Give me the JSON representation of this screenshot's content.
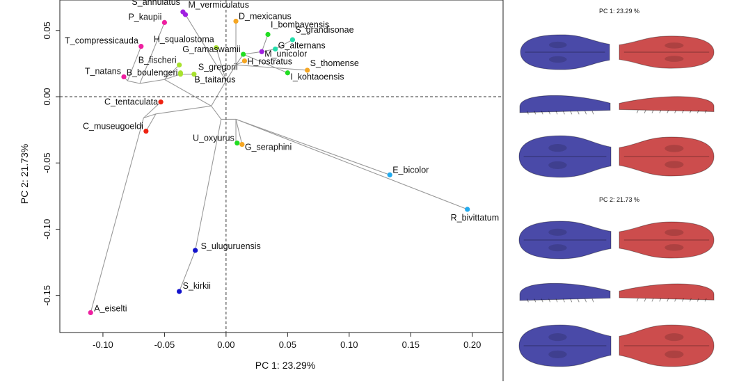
{
  "chart_data": {
    "type": "scatter",
    "xlabel": "PC 1: 23.29%",
    "ylabel": "PC 2: 21.73%",
    "xlim": [
      -0.135,
      0.225
    ],
    "ylim": [
      -0.178,
      0.073
    ],
    "xticks": [
      -0.1,
      -0.05,
      0.0,
      0.05,
      0.1,
      0.15,
      0.2
    ],
    "xtick_labels": [
      "-0.10",
      "-0.05",
      "0.00",
      "0.05",
      "0.10",
      "0.15",
      "0.20"
    ],
    "yticks": [
      0.05,
      0.0,
      -0.05,
      -0.1,
      -0.15
    ],
    "ytick_labels": [
      "0.05",
      "0.00",
      "-0.05",
      "-0.10",
      "-0.15"
    ],
    "zero_lines": true,
    "grid": false,
    "points": [
      {
        "name": "S_annulatus",
        "x": -0.035,
        "y": 0.064,
        "color": "#a020e0"
      },
      {
        "name": "M_vermiculatus",
        "x": -0.033,
        "y": 0.062,
        "color": "#a020e0"
      },
      {
        "name": "P_kaupii",
        "x": -0.05,
        "y": 0.056,
        "color": "#ee1fa0"
      },
      {
        "name": "T_compressicauda",
        "x": -0.069,
        "y": 0.038,
        "color": "#ee1fa0"
      },
      {
        "name": "H_squalostoma",
        "x": -0.008,
        "y": 0.037,
        "color": "#a8e22e"
      },
      {
        "name": "D_mexicanus",
        "x": 0.008,
        "y": 0.057,
        "color": "#f5a623"
      },
      {
        "name": "I_bombayensis",
        "x": 0.034,
        "y": 0.047,
        "color": "#22dd22"
      },
      {
        "name": "S_grandisonae",
        "x": 0.054,
        "y": 0.043,
        "color": "#22ddaa"
      },
      {
        "name": "G_alternans",
        "x": 0.04,
        "y": 0.036,
        "color": "#22ddaa"
      },
      {
        "name": "G_ramaswamii",
        "x": 0.014,
        "y": 0.032,
        "color": "#22dd22"
      },
      {
        "name": "M_unicolor",
        "x": 0.029,
        "y": 0.034,
        "color": "#a020e0"
      },
      {
        "name": "H_rostratus",
        "x": 0.015,
        "y": 0.027,
        "color": "#f5a623"
      },
      {
        "name": "B_fischeri",
        "x": -0.038,
        "y": 0.024,
        "color": "#a8e22e"
      },
      {
        "name": "S_gregorii",
        "x": -0.026,
        "y": 0.017,
        "color": "#a8e22e"
      },
      {
        "name": "B_taitanus",
        "x": -0.037,
        "y": 0.017,
        "color": "#a8e22e"
      },
      {
        "name": "S_thomense",
        "x": 0.066,
        "y": 0.02,
        "color": "#f5a623"
      },
      {
        "name": "I_kohtaoensis",
        "x": 0.05,
        "y": 0.018,
        "color": "#22dd22"
      },
      {
        "name": "T_natans",
        "x": -0.083,
        "y": 0.015,
        "color": "#ee1fa0"
      },
      {
        "name": "B_boulengeri",
        "x": -0.037,
        "y": 0.018,
        "color": "#a8e22e"
      },
      {
        "name": "C_tentaculata",
        "x": -0.053,
        "y": -0.004,
        "color": "#ee2211"
      },
      {
        "name": "C_museugoeldi",
        "x": -0.065,
        "y": -0.026,
        "color": "#ee2211"
      },
      {
        "name": "U_oxyurus",
        "x": 0.009,
        "y": -0.035,
        "color": "#22dd22"
      },
      {
        "name": "G_seraphini",
        "x": 0.013,
        "y": -0.036,
        "color": "#f5a623"
      },
      {
        "name": "E_bicolor",
        "x": 0.133,
        "y": -0.059,
        "color": "#22aaee"
      },
      {
        "name": "R_bivittatum",
        "x": 0.196,
        "y": -0.085,
        "color": "#22aaee"
      },
      {
        "name": "S_uluguruensis",
        "x": -0.025,
        "y": -0.116,
        "color": "#1111cc"
      },
      {
        "name": "S_kirkii",
        "x": -0.038,
        "y": -0.147,
        "color": "#1111cc"
      },
      {
        "name": "A_eiselti",
        "x": -0.11,
        "y": -0.163,
        "color": "#ee1fa0"
      }
    ],
    "tree_edges": [
      [
        [
          -0.067,
          -0.016
        ],
        [
          -0.11,
          -0.163
        ]
      ],
      [
        [
          -0.067,
          -0.016
        ],
        [
          -0.053,
          -0.004
        ]
      ],
      [
        [
          -0.067,
          -0.016
        ],
        [
          -0.057,
          -0.013
        ]
      ],
      [
        [
          -0.057,
          -0.013
        ],
        [
          -0.065,
          -0.026
        ]
      ],
      [
        [
          -0.057,
          -0.013
        ],
        [
          -0.012,
          -0.007
        ]
      ],
      [
        [
          -0.08,
          0.012
        ],
        [
          -0.069,
          0.038
        ]
      ],
      [
        [
          -0.08,
          0.012
        ],
        [
          -0.083,
          0.015
        ]
      ],
      [
        [
          -0.08,
          0.012
        ],
        [
          -0.07,
          0.01
        ]
      ],
      [
        [
          -0.07,
          0.01
        ],
        [
          -0.05,
          0.056
        ]
      ],
      [
        [
          -0.07,
          0.01
        ],
        [
          -0.05,
          0.013
        ]
      ],
      [
        [
          -0.05,
          0.013
        ],
        [
          -0.038,
          0.024
        ]
      ],
      [
        [
          -0.05,
          0.013
        ],
        [
          -0.037,
          0.017
        ]
      ],
      [
        [
          -0.05,
          0.013
        ],
        [
          -0.012,
          -0.007
        ]
      ],
      [
        [
          -0.037,
          0.017
        ],
        [
          -0.026,
          0.017
        ]
      ],
      [
        [
          -0.012,
          -0.007
        ],
        [
          0.0,
          0.012
        ]
      ],
      [
        [
          0.0,
          0.012
        ],
        [
          -0.008,
          0.037
        ]
      ],
      [
        [
          0.0,
          0.012
        ],
        [
          -0.033,
          0.062
        ]
      ],
      [
        [
          -0.033,
          0.062
        ],
        [
          -0.035,
          0.064
        ]
      ],
      [
        [
          0.0,
          0.012
        ],
        [
          0.008,
          0.024
        ]
      ],
      [
        [
          0.008,
          0.024
        ],
        [
          0.008,
          0.057
        ]
      ],
      [
        [
          0.008,
          0.024
        ],
        [
          0.014,
          0.032
        ]
      ],
      [
        [
          0.014,
          0.032
        ],
        [
          0.029,
          0.034
        ]
      ],
      [
        [
          0.029,
          0.034
        ],
        [
          0.034,
          0.047
        ]
      ],
      [
        [
          0.029,
          0.034
        ],
        [
          0.04,
          0.036
        ]
      ],
      [
        [
          0.04,
          0.036
        ],
        [
          0.054,
          0.043
        ]
      ],
      [
        [
          0.014,
          0.032
        ],
        [
          0.05,
          0.018
        ]
      ],
      [
        [
          0.008,
          0.024
        ],
        [
          0.066,
          0.02
        ]
      ],
      [
        [
          0.008,
          0.024
        ],
        [
          0.015,
          0.027
        ]
      ],
      [
        [
          -0.012,
          -0.007
        ],
        [
          -0.004,
          -0.017
        ]
      ],
      [
        [
          -0.004,
          -0.017
        ],
        [
          0.008,
          -0.017
        ]
      ],
      [
        [
          0.008,
          -0.017
        ],
        [
          0.008,
          -0.035
        ]
      ],
      [
        [
          0.008,
          -0.017
        ],
        [
          0.013,
          -0.036
        ]
      ],
      [
        [
          -0.004,
          -0.017
        ],
        [
          -0.025,
          -0.116
        ]
      ],
      [
        [
          -0.025,
          -0.116
        ],
        [
          -0.038,
          -0.147
        ]
      ],
      [
        [
          0.008,
          -0.017
        ],
        [
          0.133,
          -0.059
        ]
      ],
      [
        [
          0.008,
          -0.017
        ],
        [
          0.196,
          -0.085
        ]
      ]
    ]
  },
  "side_panels": [
    {
      "title": "PC 1: 23.29 %"
    },
    {
      "title": "PC 2: 21.73 %"
    }
  ],
  "colors": {
    "negative_shape": "#4a4aa8",
    "positive_shape": "#cc4d4d",
    "tree": "#999999"
  }
}
